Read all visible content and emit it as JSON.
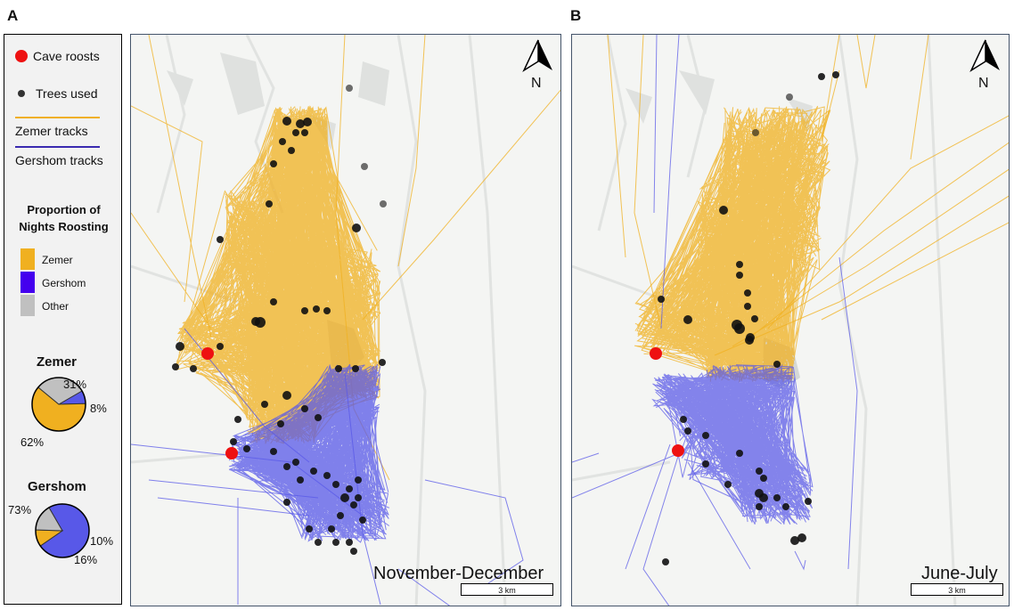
{
  "panels": {
    "a_label": "A",
    "b_label": "B"
  },
  "legend": {
    "cave_roosts": "Cave roosts",
    "trees_used": "Trees used",
    "zemer_tracks": "Zemer tracks",
    "gershom_tracks": "Gershom tracks",
    "proportion_title_1": "Proportion of",
    "proportion_title_2": "Nights Roosting",
    "zemer": "Zemer",
    "gershom": "Gershom",
    "other": "Other"
  },
  "pies": {
    "zemer": {
      "title": "Zemer",
      "zemer_pct": 62,
      "gershom_pct": 8,
      "other_pct": 31,
      "zemer_label": "62%",
      "gershom_label": "8%",
      "other_label": "31%"
    },
    "gershom": {
      "title": "Gershom",
      "zemer_pct": 10,
      "gershom_pct": 73,
      "other_pct": 16,
      "zemer_label": "10%",
      "gershom_label": "73%",
      "other_label": "16%"
    }
  },
  "maps": {
    "left": {
      "period": "November-December",
      "scale": "3 km",
      "north": "N"
    },
    "right": {
      "period": "June-July",
      "scale": "3 km",
      "north": "N"
    }
  },
  "colors": {
    "zemer": "#f0b020",
    "gershom": "#5858e8",
    "other": "#c0c0c0",
    "cave": "#ee1111",
    "tree": "#111111"
  }
}
